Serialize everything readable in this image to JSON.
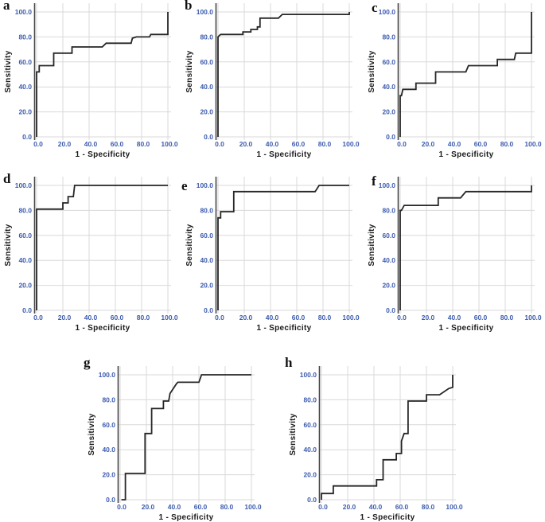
{
  "figure": {
    "type": "roc-curve-grid",
    "background": "#ffffff",
    "tick_color": "#3d5cae",
    "grid_color": "#d9d9d9",
    "axis_line_color": "#454545",
    "curve_color": "#262626",
    "label_color": "#1a1a1a",
    "x_ticks": [
      "0.0",
      "20.0",
      "40.0",
      "60.0",
      "80.0",
      "100.0"
    ],
    "y_ticks": [
      "0.0",
      "20.0",
      "40.0",
      "60.0",
      "80.0",
      "100.0"
    ]
  },
  "chart_data": [
    {
      "type": "line",
      "label": "a",
      "xlabel": "1 - Specificity",
      "ylabel": "Sensitivity",
      "xlim": [
        0,
        100
      ],
      "ylim": [
        0,
        100
      ],
      "grid": true,
      "legend": false,
      "series": [
        {
          "name": "ROC curve",
          "points": [
            [
              0,
              0
            ],
            [
              0,
              52
            ],
            [
              2,
              52
            ],
            [
              2,
              57
            ],
            [
              13,
              57
            ],
            [
              13,
              67
            ],
            [
              27,
              67
            ],
            [
              27,
              72
            ],
            [
              50,
              72
            ],
            [
              53,
              75
            ],
            [
              72,
              75
            ],
            [
              73,
              79
            ],
            [
              76,
              80
            ],
            [
              86,
              80
            ],
            [
              87,
              82
            ],
            [
              100,
              82
            ],
            [
              100,
              100
            ]
          ]
        }
      ]
    },
    {
      "type": "line",
      "label": "b",
      "xlabel": "1 - Specificity",
      "ylabel": "Sensitivity",
      "xlim": [
        0,
        100
      ],
      "ylim": [
        0,
        100
      ],
      "grid": true,
      "legend": false,
      "series": [
        {
          "name": "ROC curve",
          "points": [
            [
              0,
              0
            ],
            [
              0,
              80
            ],
            [
              1,
              81
            ],
            [
              2,
              82
            ],
            [
              19,
              82
            ],
            [
              19,
              84
            ],
            [
              25,
              84
            ],
            [
              25,
              86
            ],
            [
              30,
              86
            ],
            [
              30,
              88
            ],
            [
              32,
              88
            ],
            [
              32,
              95
            ],
            [
              46,
              95
            ],
            [
              49,
              98
            ],
            [
              100,
              98
            ],
            [
              100,
              100
            ]
          ]
        }
      ]
    },
    {
      "type": "line",
      "label": "c",
      "xlabel": "1 - Specificity",
      "ylabel": "Sensitivity",
      "xlim": [
        0,
        100
      ],
      "ylim": [
        0,
        100
      ],
      "grid": true,
      "legend": false,
      "series": [
        {
          "name": "ROC curve",
          "points": [
            [
              0,
              0
            ],
            [
              0,
              33
            ],
            [
              1,
              33
            ],
            [
              2,
              38
            ],
            [
              12,
              38
            ],
            [
              12,
              43
            ],
            [
              27,
              43
            ],
            [
              27,
              52
            ],
            [
              50,
              52
            ],
            [
              52,
              57
            ],
            [
              74,
              57
            ],
            [
              74,
              62
            ],
            [
              87,
              62
            ],
            [
              88,
              67
            ],
            [
              100,
              67
            ],
            [
              100,
              100
            ]
          ]
        }
      ]
    },
    {
      "type": "line",
      "label": "d",
      "xlabel": "1 - Specificity",
      "ylabel": "Sensitivity",
      "xlim": [
        0,
        100
      ],
      "ylim": [
        0,
        100
      ],
      "grid": true,
      "legend": false,
      "series": [
        {
          "name": "ROC curve",
          "points": [
            [
              0,
              0
            ],
            [
              0,
              81
            ],
            [
              20,
              81
            ],
            [
              20,
              86
            ],
            [
              24,
              86
            ],
            [
              24,
              91
            ],
            [
              28,
              91
            ],
            [
              29,
              100
            ],
            [
              100,
              100
            ]
          ]
        }
      ]
    },
    {
      "type": "line",
      "label": "e",
      "xlabel": "1 - Specificity",
      "ylabel": "Sensitivity",
      "xlim": [
        0,
        100
      ],
      "ylim": [
        0,
        100
      ],
      "grid": true,
      "legend": false,
      "series": [
        {
          "name": "ROC curve",
          "points": [
            [
              0,
              0
            ],
            [
              0,
              74
            ],
            [
              2,
              74
            ],
            [
              2,
              79
            ],
            [
              12,
              79
            ],
            [
              12,
              95
            ],
            [
              74,
              95
            ],
            [
              77,
              100
            ],
            [
              100,
              100
            ]
          ]
        }
      ]
    },
    {
      "type": "line",
      "label": "f",
      "xlabel": "1 - Specificity",
      "ylabel": "Sensitivity",
      "xlim": [
        0,
        100
      ],
      "ylim": [
        0,
        100
      ],
      "grid": true,
      "legend": false,
      "series": [
        {
          "name": "ROC curve",
          "points": [
            [
              0,
              0
            ],
            [
              0,
              80
            ],
            [
              1,
              80
            ],
            [
              3,
              84
            ],
            [
              29,
              84
            ],
            [
              29,
              90
            ],
            [
              46,
              90
            ],
            [
              50,
              95
            ],
            [
              100,
              95
            ],
            [
              100,
              100
            ]
          ]
        }
      ]
    },
    {
      "type": "line",
      "label": "g",
      "xlabel": "1 - Specificity",
      "ylabel": "Sensitivity",
      "xlim": [
        0,
        100
      ],
      "ylim": [
        0,
        100
      ],
      "grid": true,
      "legend": false,
      "series": [
        {
          "name": "ROC curve",
          "points": [
            [
              1,
              0
            ],
            [
              4,
              0
            ],
            [
              4,
              21
            ],
            [
              19,
              21
            ],
            [
              19,
              53
            ],
            [
              24,
              53
            ],
            [
              24,
              73
            ],
            [
              33,
              73
            ],
            [
              33,
              79
            ],
            [
              37,
              79
            ],
            [
              38,
              85
            ],
            [
              43,
              93
            ],
            [
              44,
              94
            ],
            [
              60,
              94
            ],
            [
              62,
              100
            ],
            [
              100,
              100
            ]
          ]
        }
      ]
    },
    {
      "type": "line",
      "label": "h",
      "xlabel": "1 - Specificity",
      "ylabel": "Sensitivity",
      "xlim": [
        0,
        100
      ],
      "ylim": [
        0,
        100
      ],
      "grid": true,
      "legend": false,
      "series": [
        {
          "name": "ROC curve",
          "points": [
            [
              0,
              0
            ],
            [
              0,
              5
            ],
            [
              9,
              5
            ],
            [
              9,
              11
            ],
            [
              42,
              11
            ],
            [
              42,
              16
            ],
            [
              47,
              16
            ],
            [
              47,
              32
            ],
            [
              57,
              32
            ],
            [
              57,
              37
            ],
            [
              61,
              37
            ],
            [
              61,
              47
            ],
            [
              63,
              53
            ],
            [
              66,
              53
            ],
            [
              66,
              79
            ],
            [
              80,
              79
            ],
            [
              80,
              84
            ],
            [
              90,
              84
            ],
            [
              97,
              89
            ],
            [
              100,
              90
            ],
            [
              100,
              100
            ]
          ]
        }
      ]
    }
  ]
}
